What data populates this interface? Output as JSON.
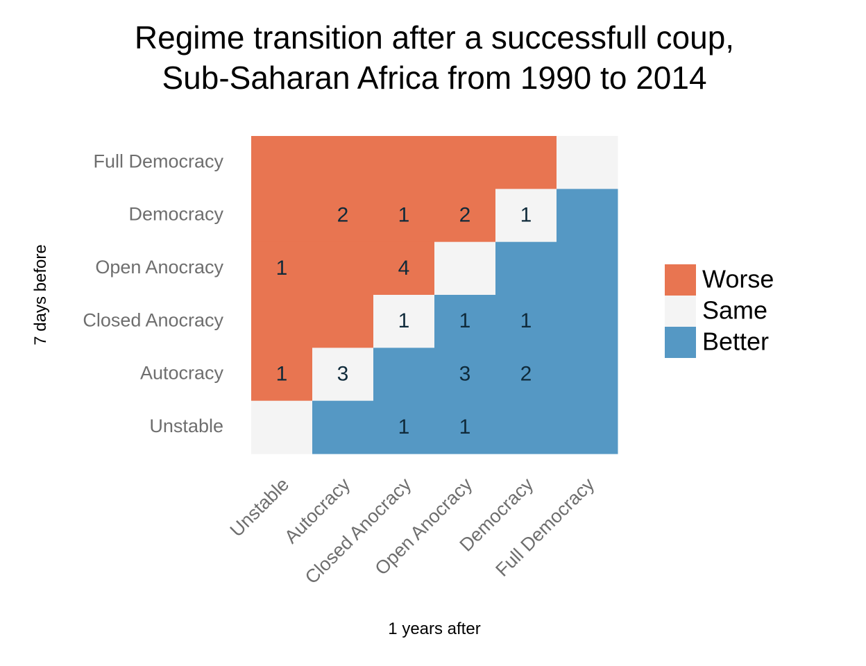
{
  "chart_data": {
    "type": "heatmap",
    "title_lines": [
      "Regime transition after a successfull coup,",
      "Sub-Saharan Africa from 1990 to 2014"
    ],
    "xlabel": "1 years after",
    "ylabel": "7 days before",
    "x_categories": [
      "Unstable",
      "Autocracy",
      "Closed Anocracy",
      "Open Anocracy",
      "Democracy",
      "Full Democracy"
    ],
    "y_categories": [
      "Full Democracy",
      "Democracy",
      "Open Anocracy",
      "Closed Anocracy",
      "Autocracy",
      "Unstable"
    ],
    "values": [
      [
        null,
        null,
        null,
        null,
        null,
        null
      ],
      [
        null,
        2,
        1,
        2,
        1,
        null
      ],
      [
        1,
        null,
        4,
        null,
        null,
        null
      ],
      [
        null,
        null,
        1,
        1,
        1,
        null
      ],
      [
        1,
        3,
        null,
        3,
        2,
        null
      ],
      [
        null,
        null,
        1,
        1,
        null,
        null
      ]
    ],
    "legend": [
      {
        "label": "Worse",
        "color": "#E87551"
      },
      {
        "label": "Same",
        "color": "#F4F4F4"
      },
      {
        "label": "Better",
        "color": "#5598C4"
      }
    ],
    "legend_position": "right"
  }
}
